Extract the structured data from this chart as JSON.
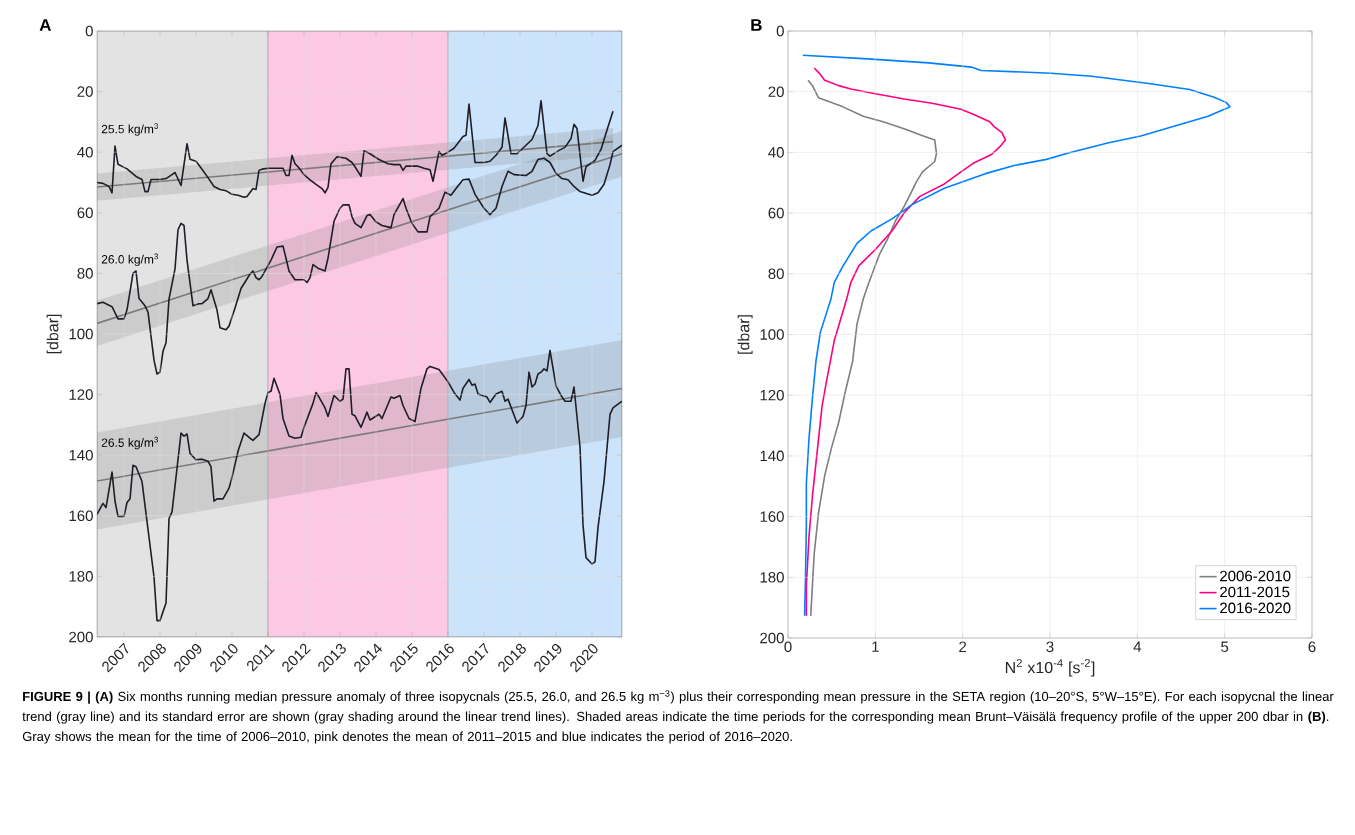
{
  "chart_data": [
    {
      "type": "line",
      "title": "A",
      "ylabel": "[dbar]",
      "xlim": [
        "2006-04",
        "2020-11"
      ],
      "ylim": [
        200,
        0
      ],
      "xticks": [
        "2007",
        "2008",
        "2009",
        "2010",
        "2011",
        "2012",
        "2013",
        "2014",
        "2015",
        "2016",
        "2017",
        "2018",
        "2019",
        "2020"
      ],
      "yticks": [
        0,
        20,
        40,
        60,
        80,
        100,
        120,
        140,
        160,
        180,
        200
      ],
      "grid": true,
      "line_style": "solid",
      "bands": [
        {
          "axis": "x",
          "from": "2006-04",
          "to": "2011-01",
          "color": "#e3e3e3"
        },
        {
          "axis": "x",
          "from": "2011-01",
          "to": "2016-01",
          "color": "#fdc8e3"
        },
        {
          "axis": "x",
          "from": "2016-01",
          "to": "2020-11",
          "color": "#cbe3fb"
        }
      ],
      "annotations": [
        {
          "text": "25.5 kg/m$^{3}$",
          "x": "2006-05",
          "y": 32.5
        },
        {
          "text": "26.0 kg/m$^{3}$",
          "x": "2006-05",
          "y": 75.5
        },
        {
          "text": "26.5 kg/m$^{3}$",
          "x": "2006-05",
          "y": 136
        },
        "**FIGURE 9 | (A)** Six months running median pressure anomaly of three isopycnals (25.5, 26.0, and 26.5 kg m$^{−3}$) plus their corresponding mean pressure in the SETA region (10–20°S, 5°W–15°E). For each isopycnal the linear trend (gray line) and its standard error are shown (gray shading around the linear trend lines). Shaded areas indicate the time periods for the corresponding mean Brunt–Väisälä frequency profile of the upper 200 dbar in **(B)**. Gray shows the mean for the time of 2006–2010, pink denotes the mean of 2011–2015 and blue indicates the period of 2016–2020."
      ],
      "series": [
        {
          "type": "line",
          "color": "#7a7a7a",
          "x": [
            "2006-04",
            "2020-08"
          ],
          "values": [
            51.5,
            36.5
          ],
          "lower": [
            47,
            32
          ],
          "upper": [
            56,
            41
          ]
        },
        {
          "type": "line",
          "color": "#7a7a7a",
          "x": [
            "2006-04",
            "2020-11"
          ],
          "values": [
            96.5,
            40.5
          ],
          "lower": [
            89,
            33
          ],
          "upper": [
            104,
            48
          ]
        },
        {
          "type": "line",
          "color": "#7a7a7a",
          "x": [
            "2006-04",
            "2020-11"
          ],
          "values": [
            148.5,
            118
          ],
          "lower": [
            132.5,
            102
          ],
          "upper": [
            164.5,
            134
          ]
        },
        {
          "type": "line",
          "color": "#1e1e28",
          "x": [
            "2006-04",
            "2006-06",
            "2006-08",
            "2006-09",
            "2006-10",
            "2006-11",
            "2007-01",
            "2007-02",
            "2007-05",
            "2007-07",
            "2007-08",
            "2007-09",
            "2007-10",
            "2008-01",
            "2008-03",
            "2008-05",
            "2008-06",
            "2008-08",
            "2008-10",
            "2008-11",
            "2009-01",
            "2009-03",
            "2009-05",
            "2009-07",
            "2009-09",
            "2009-11",
            "2010-01",
            "2010-03",
            "2010-05",
            "2010-06",
            "2010-08",
            "2010-09",
            "2010-10",
            "2010-11",
            "2011-01",
            "2011-05",
            "2011-06",
            "2011-07",
            "2011-08",
            "2011-09",
            "2011-10",
            "2011-11",
            "2012-01",
            "2012-03",
            "2012-05",
            "2012-07",
            "2012-08",
            "2012-09",
            "2012-10",
            "2012-12",
            "2013-03",
            "2013-05",
            "2013-06",
            "2013-08",
            "2013-09",
            "2013-11",
            "2014-02",
            "2014-05",
            "2014-07",
            "2014-09",
            "2014-10",
            "2014-11",
            "2015-03",
            "2015-05",
            "2015-07",
            "2015-08",
            "2015-10",
            "2015-11",
            "2016-01",
            "2016-03",
            "2016-06",
            "2016-07",
            "2016-08",
            "2016-10",
            "2017-01",
            "2017-03",
            "2017-05",
            "2017-07",
            "2017-08",
            "2017-10",
            "2017-12",
            "2018-03",
            "2018-05",
            "2018-07",
            "2018-08",
            "2018-10",
            "2018-11",
            "2019-02",
            "2019-04",
            "2019-06",
            "2019-07",
            "2019-08",
            "2019-10",
            "2019-11",
            "2020-02",
            "2020-04",
            "2020-06",
            "2020-08"
          ],
          "values": [
            50,
            50.3,
            51.3,
            53.4,
            38,
            44,
            45,
            45.5,
            48,
            49,
            53,
            53,
            49,
            49,
            48.7,
            47.4,
            46.7,
            51,
            37.2,
            42.3,
            43,
            45.6,
            48.4,
            51.3,
            52.3,
            52.7,
            53.9,
            54.2,
            54.9,
            54.6,
            52,
            52.3,
            46,
            45.6,
            45.3,
            45.3,
            45.3,
            47.7,
            47.7,
            41,
            43.8,
            44.8,
            47.4,
            49.1,
            50.6,
            52,
            53.4,
            51.6,
            43.8,
            41.5,
            42,
            43.4,
            44.8,
            48,
            39.5,
            40.5,
            42.4,
            43.8,
            44.1,
            44.1,
            46,
            44.6,
            44.6,
            45.3,
            45.8,
            49.6,
            39.8,
            41,
            40,
            38.7,
            34.8,
            34.4,
            24.1,
            43.4,
            43.4,
            43,
            41,
            38.4,
            28.7,
            40.5,
            40.5,
            37.7,
            35.8,
            31.2,
            23,
            40.5,
            41.3,
            39.4,
            38.4,
            35.5,
            30.8,
            32.2,
            49.6,
            44.8,
            42.7,
            39.1,
            32.7,
            26.5
          ]
        },
        {
          "type": "line",
          "color": "#1e1e28",
          "x": [
            "2006-04",
            "2006-06",
            "2006-09",
            "2006-11",
            "2007-01",
            "2007-02",
            "2007-04",
            "2007-05",
            "2007-06",
            "2007-08",
            "2007-09",
            "2007-11",
            "2007-12",
            "2008-01",
            "2008-02",
            "2008-03",
            "2008-04",
            "2008-06",
            "2008-07",
            "2008-08",
            "2008-09",
            "2008-10",
            "2008-12",
            "2009-02",
            "2009-03",
            "2009-05",
            "2009-06",
            "2009-08",
            "2009-09",
            "2009-11",
            "2009-12",
            "2010-02",
            "2010-04",
            "2010-07",
            "2010-08",
            "2010-09",
            "2010-10",
            "2010-11",
            "2011-01",
            "2011-02",
            "2011-04",
            "2011-06",
            "2011-07",
            "2011-08",
            "2011-10",
            "2012-01",
            "2012-02",
            "2012-03",
            "2012-04",
            "2012-06",
            "2012-07",
            "2012-08",
            "2012-09",
            "2012-11",
            "2013-01",
            "2013-02",
            "2013-04",
            "2013-05",
            "2013-06",
            "2013-08",
            "2013-10",
            "2013-11",
            "2014-01",
            "2014-03",
            "2014-06",
            "2014-07",
            "2014-10",
            "2014-11",
            "2015-01",
            "2015-03",
            "2015-06",
            "2015-07",
            "2015-10",
            "2015-12",
            "2016-02",
            "2016-04",
            "2016-06",
            "2016-08",
            "2016-10",
            "2017-01",
            "2017-03",
            "2017-05",
            "2017-07",
            "2017-09",
            "2017-11",
            "2018-03",
            "2018-05",
            "2018-07",
            "2018-09",
            "2018-11",
            "2019-01",
            "2019-03",
            "2019-05",
            "2019-07",
            "2019-09",
            "2020-01",
            "2020-03",
            "2020-05",
            "2020-07",
            "2020-08",
            "2020-11"
          ],
          "values": [
            90,
            89.5,
            91,
            95,
            95,
            92,
            80,
            79.2,
            88.3,
            90.7,
            92.8,
            108.6,
            113.2,
            112.6,
            105.7,
            102.9,
            88.5,
            78.5,
            65.6,
            63.5,
            64.2,
            75.6,
            90.7,
            90,
            90,
            88.3,
            85.4,
            92.1,
            97.9,
            98.6,
            97.4,
            91.4,
            85,
            80.2,
            79.2,
            81.4,
            82.1,
            81,
            77.4,
            75.6,
            71.3,
            71,
            75,
            79.2,
            82.1,
            82.1,
            83,
            81.4,
            77.1,
            78.5,
            78.8,
            79.2,
            75,
            62.8,
            58.5,
            57.4,
            57.4,
            61.3,
            63.5,
            64.9,
            60.9,
            60.6,
            63,
            64.2,
            64.9,
            60.6,
            55.3,
            58.5,
            63.5,
            66.3,
            66.3,
            61.3,
            58.5,
            53.2,
            54.2,
            51.6,
            49.1,
            48.9,
            53.9,
            58.5,
            60.6,
            58.5,
            51.3,
            46.3,
            47.4,
            47.7,
            46.3,
            42.4,
            42,
            43.4,
            47,
            48.7,
            49.1,
            51.3,
            53,
            54.2,
            53.4,
            50.6,
            44.1,
            39.8,
            37.7
          ]
        },
        {
          "type": "line",
          "color": "#1e1e28",
          "x": [
            "2006-04",
            "2006-06",
            "2006-07",
            "2006-09",
            "2006-10",
            "2006-11",
            "2007-01",
            "2007-02",
            "2007-03",
            "2007-04",
            "2007-05",
            "2007-07",
            "2007-09",
            "2007-11",
            "2007-12",
            "2008-01",
            "2008-03",
            "2008-04",
            "2008-05",
            "2008-06",
            "2008-08",
            "2008-09",
            "2008-10",
            "2008-11",
            "2009-01",
            "2009-03",
            "2009-05",
            "2009-06",
            "2009-07",
            "2009-08",
            "2009-10",
            "2009-12",
            "2010-01",
            "2010-03",
            "2010-05",
            "2010-07",
            "2010-08",
            "2010-10",
            "2010-12",
            "2011-01",
            "2011-02",
            "2011-03",
            "2011-05",
            "2011-06",
            "2011-08",
            "2011-10",
            "2011-12",
            "2012-01",
            "2012-04",
            "2012-05",
            "2012-06",
            "2012-08",
            "2012-09",
            "2012-11",
            "2013-01",
            "2013-02",
            "2013-03",
            "2013-04",
            "2013-05",
            "2013-06",
            "2013-08",
            "2013-10",
            "2013-11",
            "2014-02",
            "2014-03",
            "2014-06",
            "2014-07",
            "2014-09",
            "2014-10",
            "2014-12",
            "2015-02",
            "2015-04",
            "2015-06",
            "2015-07",
            "2015-10",
            "2016-01",
            "2016-03",
            "2016-05",
            "2016-06",
            "2016-08",
            "2016-09",
            "2016-10",
            "2016-11",
            "2017-02",
            "2017-03",
            "2017-05",
            "2017-07",
            "2017-08",
            "2017-09",
            "2017-12",
            "2018-02",
            "2018-03",
            "2018-04",
            "2018-05",
            "2018-06",
            "2018-07",
            "2018-08",
            "2018-09",
            "2018-10",
            "2018-11",
            "2019-01",
            "2019-03",
            "2019-04",
            "2019-06",
            "2019-07",
            "2019-09",
            "2019-10",
            "2019-11",
            "2020-01",
            "2020-02",
            "2020-03",
            "2020-05",
            "2020-07",
            "2020-08",
            "2020-10",
            "2020-11"
          ],
          "values": [
            159.5,
            155.9,
            157.3,
            145.6,
            155.2,
            160.2,
            160.2,
            155.6,
            154.4,
            143.3,
            143.8,
            148.7,
            164.5,
            180.2,
            194.6,
            194.6,
            188.8,
            160.9,
            158.7,
            150.1,
            132.7,
            133.7,
            133,
            139.4,
            141.5,
            141.3,
            142,
            143.8,
            155.2,
            154.4,
            154.4,
            150.9,
            147.3,
            138.7,
            132.7,
            134.4,
            135.1,
            133.2,
            122.9,
            119.3,
            118.9,
            114.6,
            120,
            127.9,
            133.7,
            134.4,
            134.1,
            130.8,
            122.9,
            119.3,
            120.8,
            124.4,
            127.2,
            120.3,
            122.2,
            121.5,
            111.5,
            111.5,
            126.5,
            127,
            130.8,
            125.8,
            128.4,
            126.5,
            127.9,
            120.8,
            121.2,
            120.3,
            123.6,
            127.9,
            128.9,
            117.9,
            111.5,
            110.7,
            111.7,
            115.8,
            119.3,
            121.8,
            117.9,
            115,
            116.9,
            116.5,
            119.8,
            120.8,
            122.6,
            119.8,
            118.9,
            122.2,
            121.5,
            129.4,
            127.2,
            123.6,
            112.6,
            117.5,
            116.5,
            113.2,
            112.6,
            111.5,
            112.2,
            105.4,
            117.2,
            120.8,
            122.2,
            122.2,
            117.5,
            137.3,
            163,
            173.8,
            175.9,
            175.2,
            163.8,
            148.7,
            126.5,
            124.4,
            122.9,
            122.2
          ]
        }
      ]
    },
    {
      "type": "line",
      "title": "B",
      "xlabel": "N$^{2}$ x10$^{-4}$ [s$^{-2}$]",
      "ylabel": "[dbar]",
      "xlim": [
        0,
        6
      ],
      "ylim": [
        200,
        0
      ],
      "xticks": [
        0,
        1,
        2,
        3,
        4,
        5,
        6
      ],
      "yticks": [
        0,
        20,
        40,
        60,
        80,
        100,
        120,
        140,
        160,
        180,
        200
      ],
      "grid": true,
      "legend": "bottom right",
      "line_style": "solid",
      "series": [
        {
          "name": "2006-2010",
          "color": "#7f7f7f",
          "x": [
            0.23,
            0.28,
            0.35,
            0.63,
            0.86,
            1.09,
            1.37,
            1.51,
            1.68,
            1.7,
            1.68,
            1.54,
            1.47,
            1.4,
            1.33,
            1.23,
            1.14,
            1.05,
            0.98,
            0.91,
            0.86,
            0.79,
            0.74,
            0.65,
            0.58,
            0.5,
            0.42,
            0.35,
            0.3,
            0.26
          ],
          "values": [
            16.2,
            18,
            22,
            25,
            28.1,
            29.9,
            32.6,
            34.2,
            35.9,
            40.3,
            43,
            46.4,
            49.7,
            53.8,
            57.8,
            62.6,
            68.6,
            73.4,
            78.8,
            84.2,
            88.5,
            96.6,
            108.8,
            119.6,
            129,
            137.1,
            146.5,
            158.7,
            172.2,
            192.7
          ]
        },
        {
          "name": "2011-2015",
          "color": "#ff0080",
          "x": [
            0.3,
            0.37,
            0.42,
            0.58,
            0.72,
            1.0,
            1.33,
            1.65,
            1.98,
            2.12,
            2.31,
            2.36,
            2.45,
            2.49,
            2.43,
            2.33,
            2.12,
            1.98,
            1.79,
            1.51,
            1.33,
            1.19,
            1.0,
            0.81,
            0.72,
            0.67,
            0.53,
            0.44,
            0.39,
            0.32,
            0.28,
            0.24,
            0.21,
            0.21
          ],
          "values": [
            12.2,
            14.3,
            16.2,
            18,
            19.1,
            20.7,
            22.4,
            23.8,
            25.8,
            27.4,
            29.9,
            31.5,
            33.5,
            35.9,
            38,
            40.7,
            43.6,
            46.4,
            50.4,
            54.5,
            59.9,
            65.9,
            72,
            77.4,
            82.8,
            88.5,
            102,
            115.5,
            123.6,
            142.4,
            153.2,
            166.7,
            183,
            192.7
          ]
        },
        {
          "name": "2016-2020",
          "color": "#0080ff",
          "x": [
            0.17,
            0.91,
            1.61,
            2.1,
            2.21,
            3.01,
            3.48,
            4.13,
            4.6,
            4.88,
            5.02,
            5.06,
            4.97,
            4.81,
            4.41,
            4.04,
            3.66,
            3.2,
            2.96,
            2.59,
            2.26,
            1.79,
            1.42,
            1.19,
            0.95,
            0.79,
            0.63,
            0.53,
            0.49,
            0.37,
            0.32,
            0.28,
            0.24,
            0.21,
            0.21,
            0.2,
            0.19
          ],
          "values": [
            8,
            9.2,
            10.5,
            11.9,
            13,
            13.9,
            14.9,
            17.3,
            19.3,
            21.8,
            23.6,
            25,
            26.1,
            28.1,
            31.5,
            34.6,
            36.9,
            40.3,
            42.3,
            44.3,
            47,
            51.8,
            57.2,
            61.9,
            65.9,
            70,
            77.4,
            82.8,
            88.5,
            99.3,
            108.8,
            120.9,
            134.4,
            149.2,
            162.7,
            180.2,
            192.7
          ]
        }
      ]
    }
  ]
}
